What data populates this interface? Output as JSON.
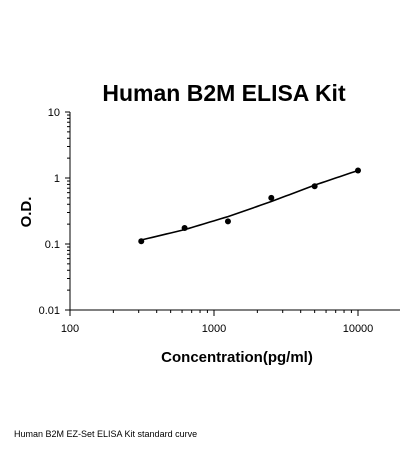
{
  "chart_data": {
    "type": "scatter",
    "title": "Human B2M ELISA Kit",
    "xlabel": "Concentration(pg/ml)",
    "ylabel": "O.D.",
    "x_scale": "log",
    "y_scale": "log",
    "xlim": [
      100,
      20000
    ],
    "ylim": [
      0.01,
      10
    ],
    "x_ticks": [
      "100",
      "1000",
      "10000"
    ],
    "y_ticks": [
      "10",
      "1",
      "0.1",
      "0.01"
    ],
    "grid": false,
    "series": [
      {
        "points": [
          {
            "x": 312.5,
            "y": 0.11
          },
          {
            "x": 625,
            "y": 0.175
          },
          {
            "x": 1250,
            "y": 0.22
          },
          {
            "x": 2500,
            "y": 0.5
          },
          {
            "x": 5000,
            "y": 0.75
          },
          {
            "x": 10000,
            "y": 1.3
          }
        ],
        "fit_curve": [
          {
            "x": 312.5,
            "y": 0.115
          },
          {
            "x": 625,
            "y": 0.165
          },
          {
            "x": 1250,
            "y": 0.26
          },
          {
            "x": 2500,
            "y": 0.44
          },
          {
            "x": 5000,
            "y": 0.78
          },
          {
            "x": 10000,
            "y": 1.3
          }
        ]
      }
    ]
  },
  "caption": "Human B2M EZ-Set ELISA Kit standard curve"
}
